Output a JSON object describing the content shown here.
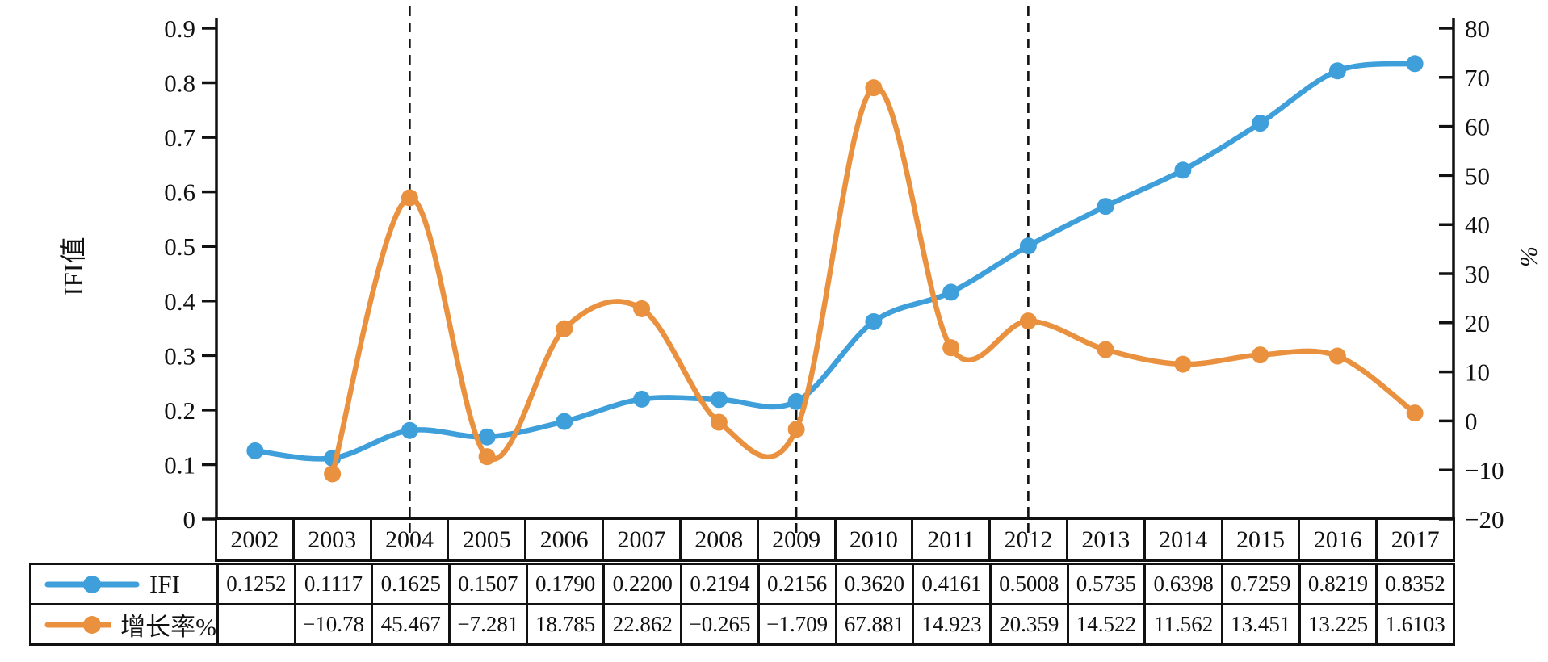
{
  "chart_data": {
    "type": "line",
    "categories": [
      2002,
      2003,
      2004,
      2005,
      2006,
      2007,
      2008,
      2009,
      2010,
      2011,
      2012,
      2013,
      2014,
      2015,
      2016,
      2017
    ],
    "series": [
      {
        "name": "IFI",
        "axis": "left",
        "color": "#3F9FDA",
        "values": [
          0.1252,
          0.1117,
          0.1625,
          0.1507,
          0.179,
          0.22,
          0.2194,
          0.2156,
          0.362,
          0.4161,
          0.5008,
          0.5735,
          0.6398,
          0.7259,
          0.8219,
          0.8352
        ]
      },
      {
        "name": "增长率%",
        "axis": "right",
        "color": "#E9913F",
        "values": [
          null,
          -10.78,
          45.467,
          -7.281,
          18.785,
          22.862,
          -0.265,
          -1.709,
          67.881,
          14.923,
          20.359,
          14.522,
          11.562,
          13.451,
          13.225,
          1.6103
        ]
      }
    ],
    "left_axis": {
      "label": "IFI值",
      "min": 0,
      "max": 0.9,
      "tick_labels": [
        "0",
        "0.1",
        "0.2",
        "0.3",
        "0.4",
        "0.5",
        "0.6",
        "0.7",
        "0.8",
        "0.9"
      ]
    },
    "right_axis": {
      "label": "%",
      "min": -20,
      "max": 80,
      "tick_labels": [
        "−20",
        "−10",
        "0",
        "10",
        "20",
        "30",
        "40",
        "50",
        "60",
        "70",
        "80"
      ]
    },
    "dashed_vertical_lines_at_years": [
      2004,
      2009,
      2012
    ],
    "grid": false,
    "legend_position": "table-left-column",
    "xlabel": "",
    "title": ""
  },
  "table": {
    "year_header": [
      "2002",
      "2003",
      "2004",
      "2005",
      "2006",
      "2007",
      "2008",
      "2009",
      "2010",
      "2011",
      "2012",
      "2013",
      "2014",
      "2015",
      "2016",
      "2017"
    ],
    "rows": [
      {
        "label": "IFI",
        "series_color": "#3F9FDA",
        "values": [
          "0.1252",
          "0.1117",
          "0.1625",
          "0.1507",
          "0.1790",
          "0.2200",
          "0.2194",
          "0.2156",
          "0.3620",
          "0.4161",
          "0.5008",
          "0.5735",
          "0.6398",
          "0.7259",
          "0.8219",
          "0.8352"
        ]
      },
      {
        "label": "增长率%",
        "series_color": "#E9913F",
        "values": [
          "",
          "−10.78",
          "45.467",
          "−7.281",
          "18.785",
          "22.862",
          "−0.265",
          "−1.709",
          "67.881",
          "14.923",
          "20.359",
          "14.522",
          "11.562",
          "13.451",
          "13.225",
          "1.6103"
        ]
      }
    ]
  }
}
